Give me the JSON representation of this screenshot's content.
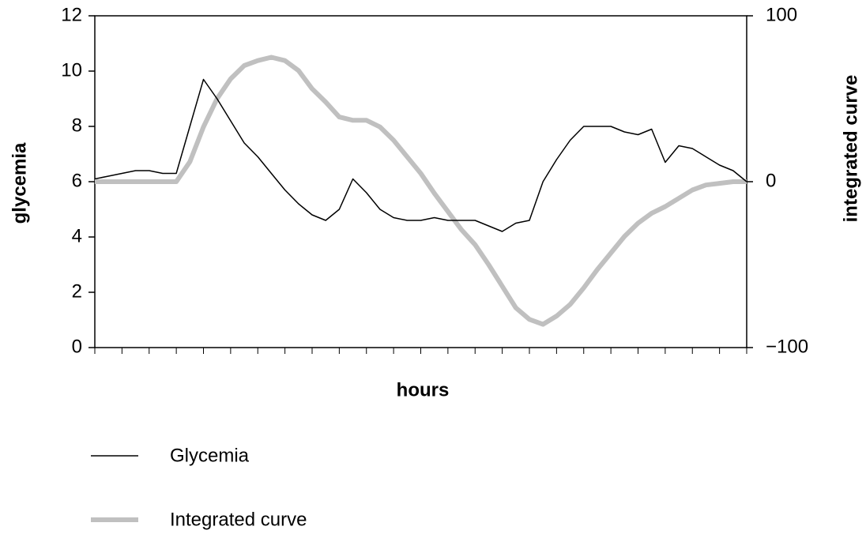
{
  "chart_data": {
    "type": "line",
    "x_label": "hours",
    "y_label": "glycemia",
    "y2_label": "integrated curve",
    "x": [
      0,
      0.5,
      1,
      1.5,
      2,
      2.5,
      3,
      3.5,
      4,
      4.5,
      5,
      5.5,
      6,
      6.5,
      7,
      7.5,
      8,
      8.5,
      9,
      9.5,
      10,
      10.5,
      11,
      11.5,
      12,
      12.5,
      13,
      13.5,
      14,
      14.5,
      15,
      15.5,
      16,
      16.5,
      17,
      17.5,
      18,
      18.5,
      19,
      19.5,
      20,
      20.5,
      21,
      21.5,
      22,
      22.5,
      23,
      23.5,
      24
    ],
    "xlim": [
      0,
      24
    ],
    "xticks": [
      0,
      1,
      2,
      3,
      4,
      5,
      6,
      7,
      8,
      9,
      10,
      11,
      12,
      13,
      14,
      15,
      16,
      17,
      18,
      19,
      20,
      21,
      22,
      23,
      24
    ],
    "ylim": [
      0,
      12
    ],
    "yticks": [
      0,
      2,
      4,
      6,
      8,
      10,
      12
    ],
    "y2lim": [
      -100,
      100
    ],
    "y2ticks": [
      {
        "value": -100,
        "label": "−100"
      },
      0,
      100
    ],
    "series": [
      {
        "name": "Glycemia",
        "color": "#000000",
        "width": 1.5,
        "values": [
          6.1,
          6.2,
          6.3,
          6.4,
          6.4,
          6.3,
          6.3,
          8.0,
          9.7,
          9.0,
          8.2,
          7.4,
          6.9,
          6.3,
          5.7,
          5.2,
          4.8,
          4.6,
          5.0,
          6.1,
          5.6,
          5.0,
          4.7,
          4.6,
          4.6,
          4.7,
          4.6,
          4.6,
          4.6,
          4.4,
          4.2,
          4.5,
          4.6,
          6.0,
          6.8,
          7.5,
          8.0,
          8.0,
          8.0,
          7.8,
          7.7,
          7.9,
          6.7,
          7.3,
          7.2,
          6.9,
          6.6,
          6.4,
          6.0
        ]
      },
      {
        "name": "Integrated curve",
        "color": "#c0c0c0",
        "width": 6,
        "axis": "y2",
        "values": [
          0,
          0,
          0,
          0,
          0,
          0,
          0,
          12,
          33,
          50,
          62,
          70,
          73,
          75,
          73,
          67,
          56,
          48,
          39,
          37,
          37,
          33,
          25,
          15,
          5,
          -7,
          -18,
          -29,
          -38,
          -50,
          -63,
          -76,
          -83,
          -86,
          -81,
          -74,
          -64,
          -53,
          -43,
          -33,
          -25,
          -19,
          -15,
          -10,
          -5,
          -2,
          -1,
          0,
          0
        ]
      }
    ]
  }
}
